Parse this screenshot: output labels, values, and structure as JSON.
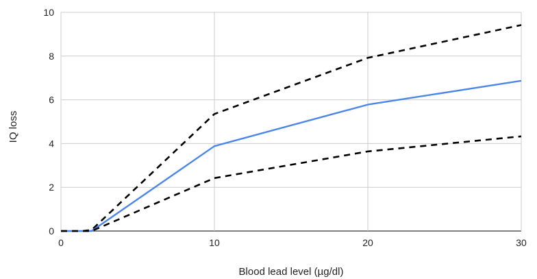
{
  "chart_data": {
    "type": "line",
    "title": "",
    "xlabel": "Blood lead level (µg/dl)",
    "ylabel": "IQ loss",
    "xlim": [
      0,
      30
    ],
    "ylim": [
      0,
      10
    ],
    "x_ticks": [
      0,
      10,
      20,
      30
    ],
    "y_ticks": [
      0,
      2,
      4,
      6,
      8,
      10
    ],
    "grid": true,
    "legend": "none",
    "series": [
      {
        "role": "upper-bound",
        "color": "#000000",
        "style": "dashed",
        "x": [
          0,
          1.4,
          2,
          10,
          20,
          30
        ],
        "y": [
          0,
          0,
          0.05,
          5.35,
          7.92,
          9.42
        ]
      },
      {
        "role": "central-estimate",
        "color": "#4a86e8",
        "style": "solid",
        "x": [
          0,
          1.4,
          2,
          10,
          20,
          30
        ],
        "y": [
          0,
          0,
          0,
          3.88,
          5.78,
          6.87
        ]
      },
      {
        "role": "lower-bound",
        "color": "#000000",
        "style": "dashed",
        "x": [
          0,
          1.4,
          2,
          10,
          20,
          30
        ],
        "y": [
          0,
          0,
          0,
          2.42,
          3.64,
          4.33
        ]
      }
    ]
  }
}
